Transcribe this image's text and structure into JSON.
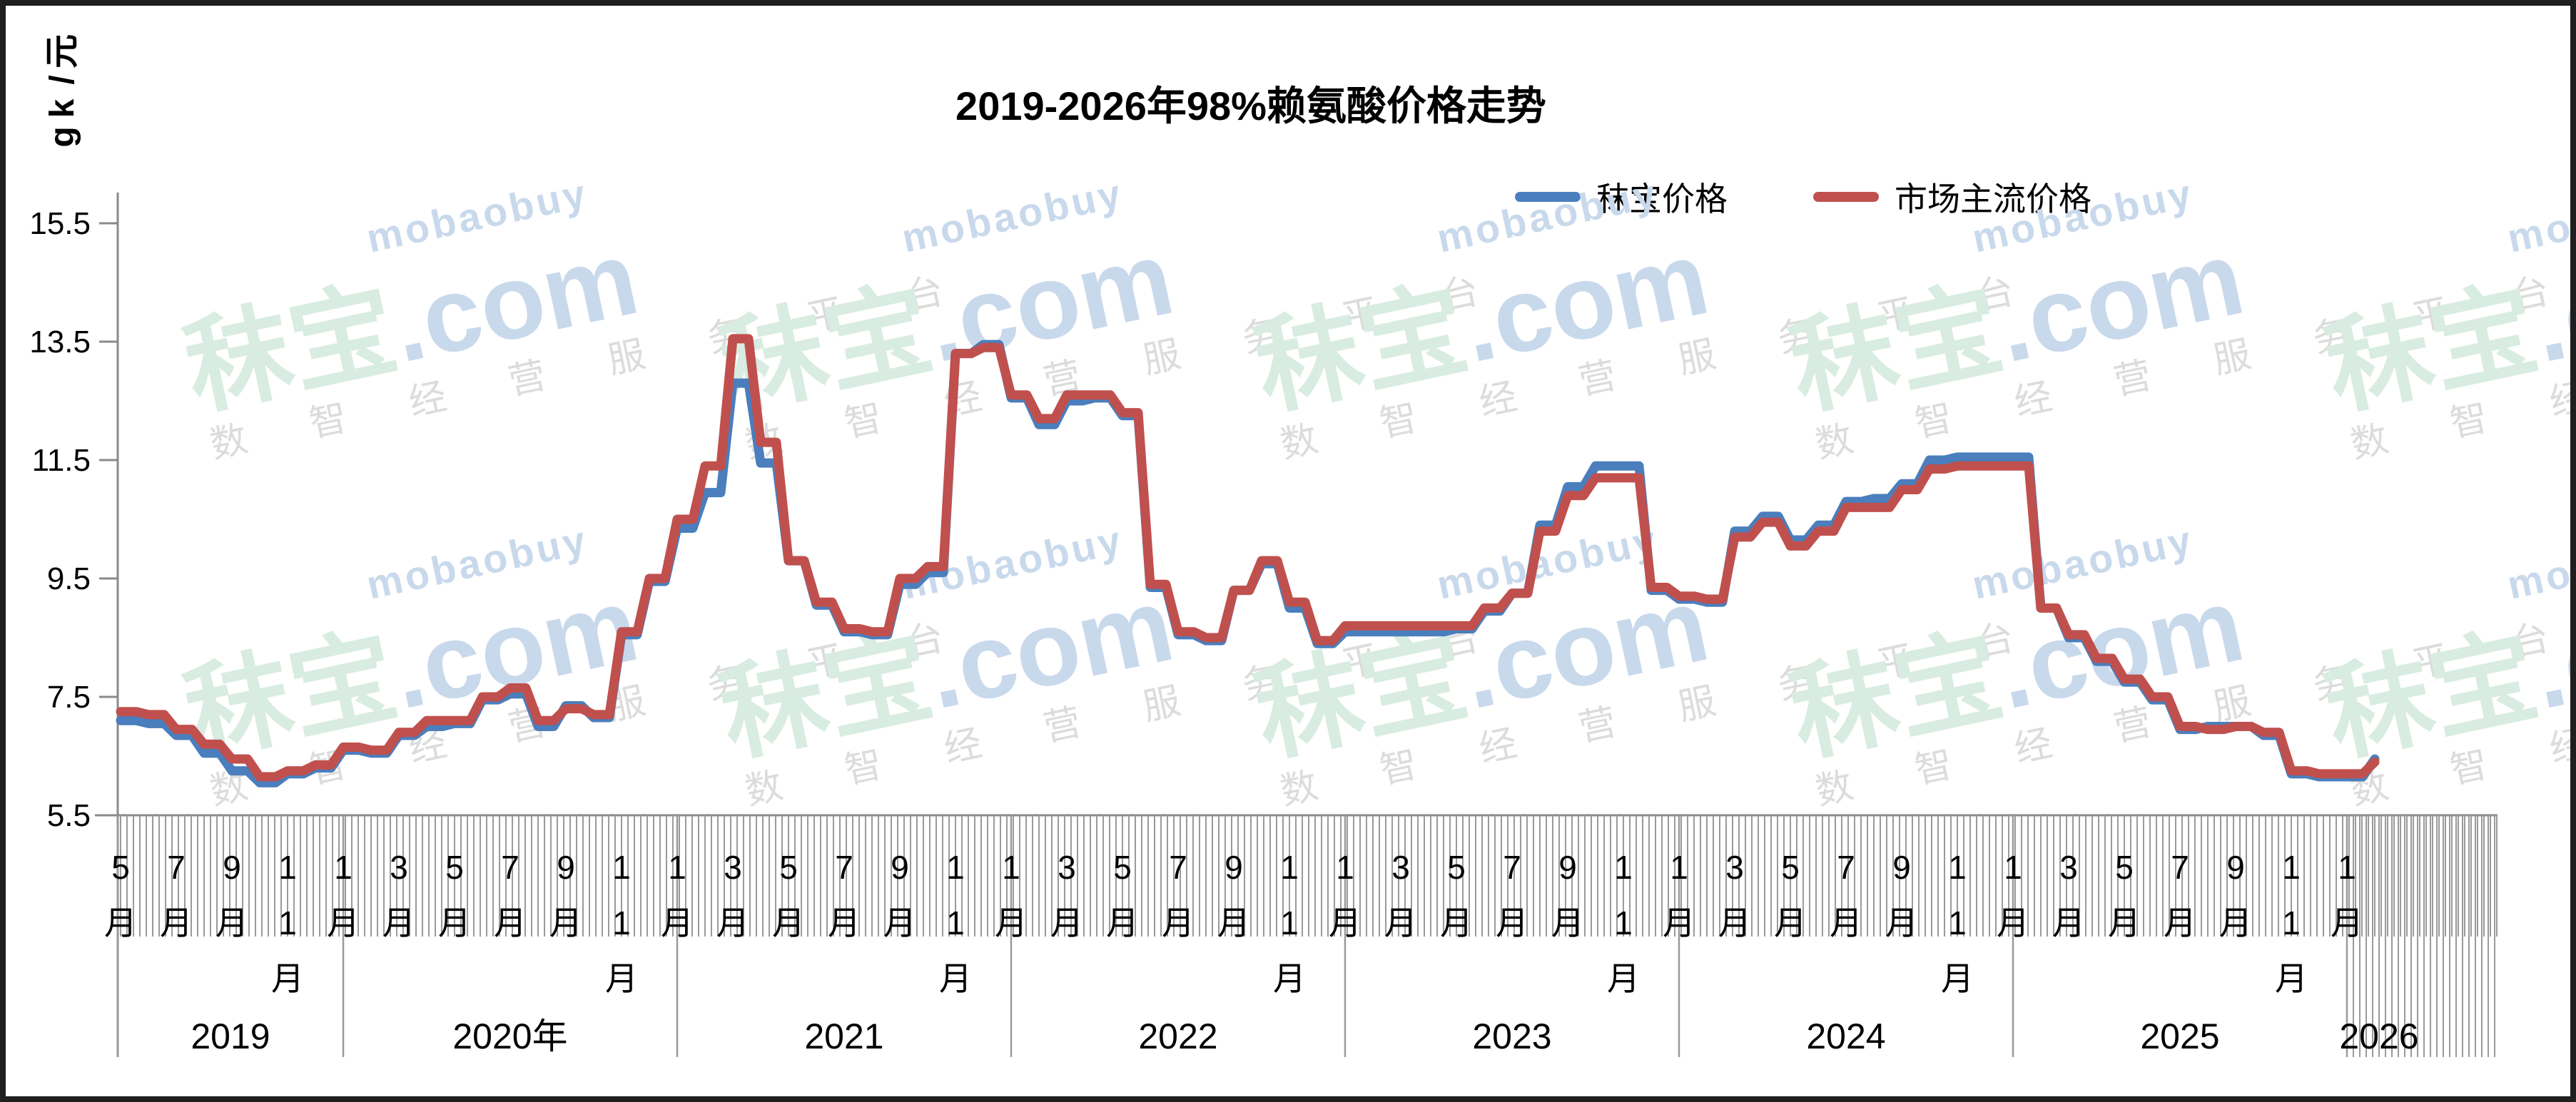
{
  "title": "2019-2026年98%赖氨酸价格走势",
  "y_axis": {
    "name": "元/kg",
    "ticks": [
      "5.5",
      "7.5",
      "9.5",
      "11.5",
      "13.5",
      "15.5"
    ],
    "min": 5.5,
    "max": 15.5
  },
  "x_axis": {
    "month_suffix": "月",
    "labeled_months": [
      1,
      3,
      5,
      7,
      9,
      11
    ],
    "years": [
      {
        "label": "2019"
      },
      {
        "label": "2020年"
      },
      {
        "label": "2021"
      },
      {
        "label": "2022"
      },
      {
        "label": "2023"
      },
      {
        "label": "2024"
      },
      {
        "label": "2025"
      },
      {
        "label": "2026"
      }
    ]
  },
  "legend": [
    {
      "label": "秣宝价格",
      "color": "#4A7EBD"
    },
    {
      "label": "市场主流价格",
      "color": "#C0504D"
    }
  ],
  "watermark": {
    "brand": "秣宝",
    "domain": ".com",
    "latin": "mobaobuy",
    "slogan": "数 智 经 营 服 务 平 台",
    "brand_color": "#d9ece1",
    "domain_color": "#c9d9ec",
    "slogan_color": "#dcdcdc"
  },
  "chart_data": {
    "type": "line",
    "title": "2019-2026年98%赖氨酸价格走势",
    "ylabel": "元/kg",
    "ylim": [
      5.5,
      15.5
    ],
    "grid": false,
    "legend_position": "top",
    "x": [
      "2019-05",
      "2019-06",
      "2019-07",
      "2019-08",
      "2019-09",
      "2019-10",
      "2019-11",
      "2019-12",
      "2020-01",
      "2020-02",
      "2020-03",
      "2020-04",
      "2020-05",
      "2020-06",
      "2020-07",
      "2020-08",
      "2020-09",
      "2020-10",
      "2020-11",
      "2020-12",
      "2021-01",
      "2021-02",
      "2021-03",
      "2021-04",
      "2021-05",
      "2021-06",
      "2021-07",
      "2021-08",
      "2021-09",
      "2021-10",
      "2021-11",
      "2021-12",
      "2022-01",
      "2022-02",
      "2022-03",
      "2022-04",
      "2022-05",
      "2022-06",
      "2022-07",
      "2022-08",
      "2022-09",
      "2022-10",
      "2022-11",
      "2022-12",
      "2023-01",
      "2023-02",
      "2023-03",
      "2023-04",
      "2023-05",
      "2023-06",
      "2023-07",
      "2023-08",
      "2023-09",
      "2023-10",
      "2023-11",
      "2023-12",
      "2024-01",
      "2024-02",
      "2024-03",
      "2024-04",
      "2024-05",
      "2024-06",
      "2024-07",
      "2024-08",
      "2024-09",
      "2024-10",
      "2024-11",
      "2024-12",
      "2025-01",
      "2025-02",
      "2025-03",
      "2025-04",
      "2025-05",
      "2025-06",
      "2025-07",
      "2025-08",
      "2025-09",
      "2025-10",
      "2025-11",
      "2025-12",
      "2026-01",
      "2026-02"
    ],
    "series": [
      {
        "name": "秣宝价格",
        "color": "#4A7EBD",
        "values": [
          7.1,
          7.05,
          6.85,
          6.55,
          6.25,
          6.05,
          6.2,
          6.3,
          6.6,
          6.55,
          6.85,
          7.0,
          7.05,
          7.45,
          7.55,
          7.0,
          7.35,
          7.15,
          8.55,
          9.45,
          10.35,
          10.95,
          12.8,
          11.45,
          9.8,
          9.05,
          8.6,
          8.55,
          9.4,
          9.6,
          13.3,
          13.45,
          12.55,
          12.1,
          12.5,
          12.55,
          12.25,
          9.35,
          8.55,
          8.45,
          9.3,
          9.75,
          9.0,
          8.4,
          8.6,
          8.6,
          8.6,
          8.6,
          8.65,
          8.95,
          9.25,
          10.4,
          11.05,
          11.4,
          11.4,
          9.3,
          9.15,
          9.1,
          10.3,
          10.55,
          10.15,
          10.4,
          10.8,
          10.85,
          11.1,
          11.5,
          11.55,
          11.55,
          11.55,
          9.0,
          8.5,
          8.1,
          7.75,
          7.45,
          6.95,
          7.0,
          7.0,
          6.85,
          6.2,
          6.15,
          6.15,
          6.45
        ]
      },
      {
        "name": "市场主流价格",
        "color": "#C0504D",
        "values": [
          7.25,
          7.2,
          6.95,
          6.7,
          6.45,
          6.15,
          6.25,
          6.35,
          6.65,
          6.6,
          6.9,
          7.1,
          7.1,
          7.5,
          7.65,
          7.1,
          7.3,
          7.2,
          8.6,
          9.5,
          10.5,
          11.4,
          13.55,
          11.8,
          9.8,
          9.1,
          8.65,
          8.6,
          9.5,
          9.7,
          13.3,
          13.4,
          12.6,
          12.2,
          12.6,
          12.6,
          12.3,
          9.4,
          8.6,
          8.5,
          9.3,
          9.8,
          9.1,
          8.45,
          8.7,
          8.7,
          8.7,
          8.7,
          8.7,
          9.0,
          9.25,
          10.3,
          10.9,
          11.2,
          11.2,
          9.35,
          9.2,
          9.15,
          10.2,
          10.45,
          10.05,
          10.3,
          10.7,
          10.7,
          11.0,
          11.35,
          11.4,
          11.4,
          11.4,
          9.0,
          8.55,
          8.15,
          7.8,
          7.5,
          7.0,
          6.95,
          7.0,
          6.9,
          6.25,
          6.2,
          6.2,
          6.4
        ]
      }
    ]
  }
}
